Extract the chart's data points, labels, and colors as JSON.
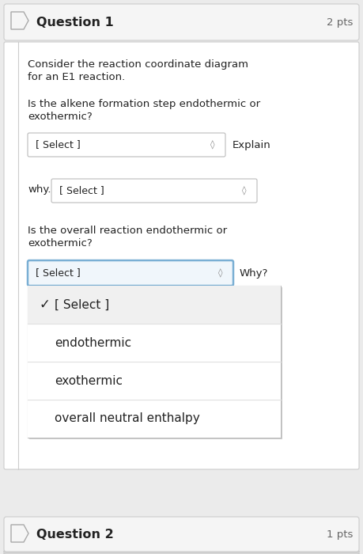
{
  "title": "Question 1",
  "pts": "2 pts",
  "body_text_1a": "Consider the reaction coordinate diagram",
  "body_text_1b": "for an E1 reaction.",
  "question_1a": "Is the alkene formation step endothermic or",
  "question_1b": "exothermic?",
  "select_label": "[ Select ]",
  "explain_label": "Explain",
  "why_label": "why.",
  "question_2a": "Is the overall reaction endothermic or",
  "question_2b": "exothermic?",
  "why2_label": "Why?",
  "dropdown_items": [
    "[ Select ]",
    "endothermic",
    "exothermic",
    "overall neutral enthalpy"
  ],
  "checkmark": "✓",
  "question2_header": "Question 2",
  "question2_pts": "1 pts",
  "bg_color": "#ebebeb",
  "card_color": "#ffffff",
  "header_bg": "#f5f5f5",
  "dropdown_color": "#ffffff",
  "dropdown_border_color": "#bbbbbb",
  "dropdown_active_border": "#7aafd4",
  "header_border": "#cccccc",
  "tag_border": "#aaaaaa",
  "font_color": "#222222",
  "gray_text": "#666666",
  "divider_color": "#e0e0e0",
  "menu_bg": "#ffffff",
  "menu_item0_bg": "#f0f0f0",
  "font_size_title": 11.5,
  "font_size_body": 9.5,
  "font_size_select": 9.0,
  "font_size_menu": 11.0
}
